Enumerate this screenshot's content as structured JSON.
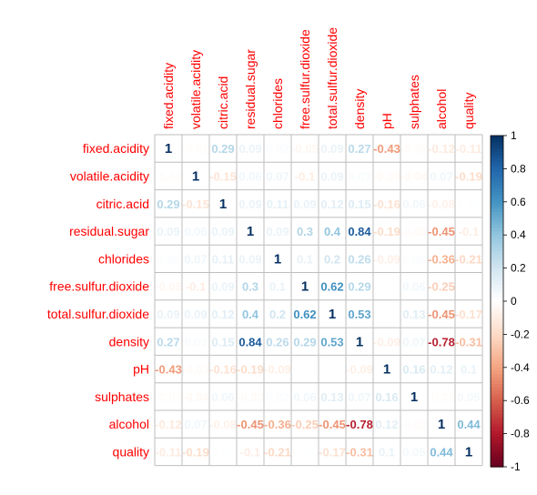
{
  "chart_data": {
    "type": "heatmap",
    "variables": [
      "fixed.acidity",
      "volatile.acidity",
      "citric.acid",
      "residual.sugar",
      "chlorides",
      "free.sulfur.dioxide",
      "total.sulfur.dioxide",
      "density",
      "pH",
      "sulphates",
      "alcohol",
      "quality"
    ],
    "matrix": [
      [
        1,
        -0.02,
        0.29,
        0.09,
        0.02,
        -0.05,
        0.09,
        0.27,
        -0.43,
        -0.02,
        -0.12,
        -0.11
      ],
      [
        -0.02,
        1,
        -0.15,
        0.06,
        0.07,
        -0.1,
        0.09,
        0.03,
        -0.03,
        -0.04,
        0.07,
        -0.19
      ],
      [
        0.29,
        -0.15,
        1,
        0.09,
        0.11,
        0.09,
        0.12,
        0.15,
        -0.16,
        0.06,
        -0.08,
        0.01
      ],
      [
        0.09,
        0.06,
        0.09,
        1,
        0.09,
        0.3,
        0.4,
        0.84,
        -0.19,
        -0.03,
        -0.45,
        -0.1
      ],
      [
        0.02,
        0.07,
        0.11,
        0.09,
        1,
        0.1,
        0.2,
        0.26,
        -0.09,
        0.02,
        -0.36,
        -0.21
      ],
      [
        -0.05,
        -0.1,
        0.09,
        0.3,
        0.1,
        1,
        0.62,
        0.29,
        0,
        0.06,
        -0.25,
        0.01
      ],
      [
        0.09,
        0.09,
        0.12,
        0.4,
        0.2,
        0.62,
        1,
        0.53,
        0,
        0.13,
        -0.45,
        -0.17
      ],
      [
        0.27,
        0.03,
        0.15,
        0.84,
        0.26,
        0.29,
        0.53,
        1,
        -0.09,
        0.07,
        -0.78,
        -0.31
      ],
      [
        -0.43,
        -0.03,
        -0.16,
        -0.19,
        -0.09,
        0,
        0,
        -0.09,
        1,
        0.16,
        0.12,
        0.1
      ],
      [
        -0.02,
        -0.04,
        0.06,
        -0.03,
        0.02,
        0.06,
        0.13,
        0.07,
        0.16,
        1,
        -0.02,
        0.05
      ],
      [
        -0.12,
        0.07,
        -0.08,
        -0.45,
        -0.36,
        -0.25,
        -0.45,
        -0.78,
        0.12,
        -0.02,
        1,
        0.44
      ],
      [
        -0.11,
        -0.19,
        0.01,
        -0.1,
        -0.21,
        0.01,
        -0.17,
        -0.31,
        0.1,
        0.05,
        0.44,
        1
      ]
    ],
    "value_range": [
      -1,
      1
    ],
    "colorbar_ticks": [
      1,
      0.8,
      0.6,
      0.4,
      0.2,
      0,
      -0.2,
      -0.4,
      -0.6,
      -0.8,
      -1
    ],
    "colors": {
      "positive": "#053061",
      "zero": "#ffffff",
      "negative": "#67001f",
      "label": "#ff0000"
    },
    "grid": true,
    "legend": "right"
  }
}
